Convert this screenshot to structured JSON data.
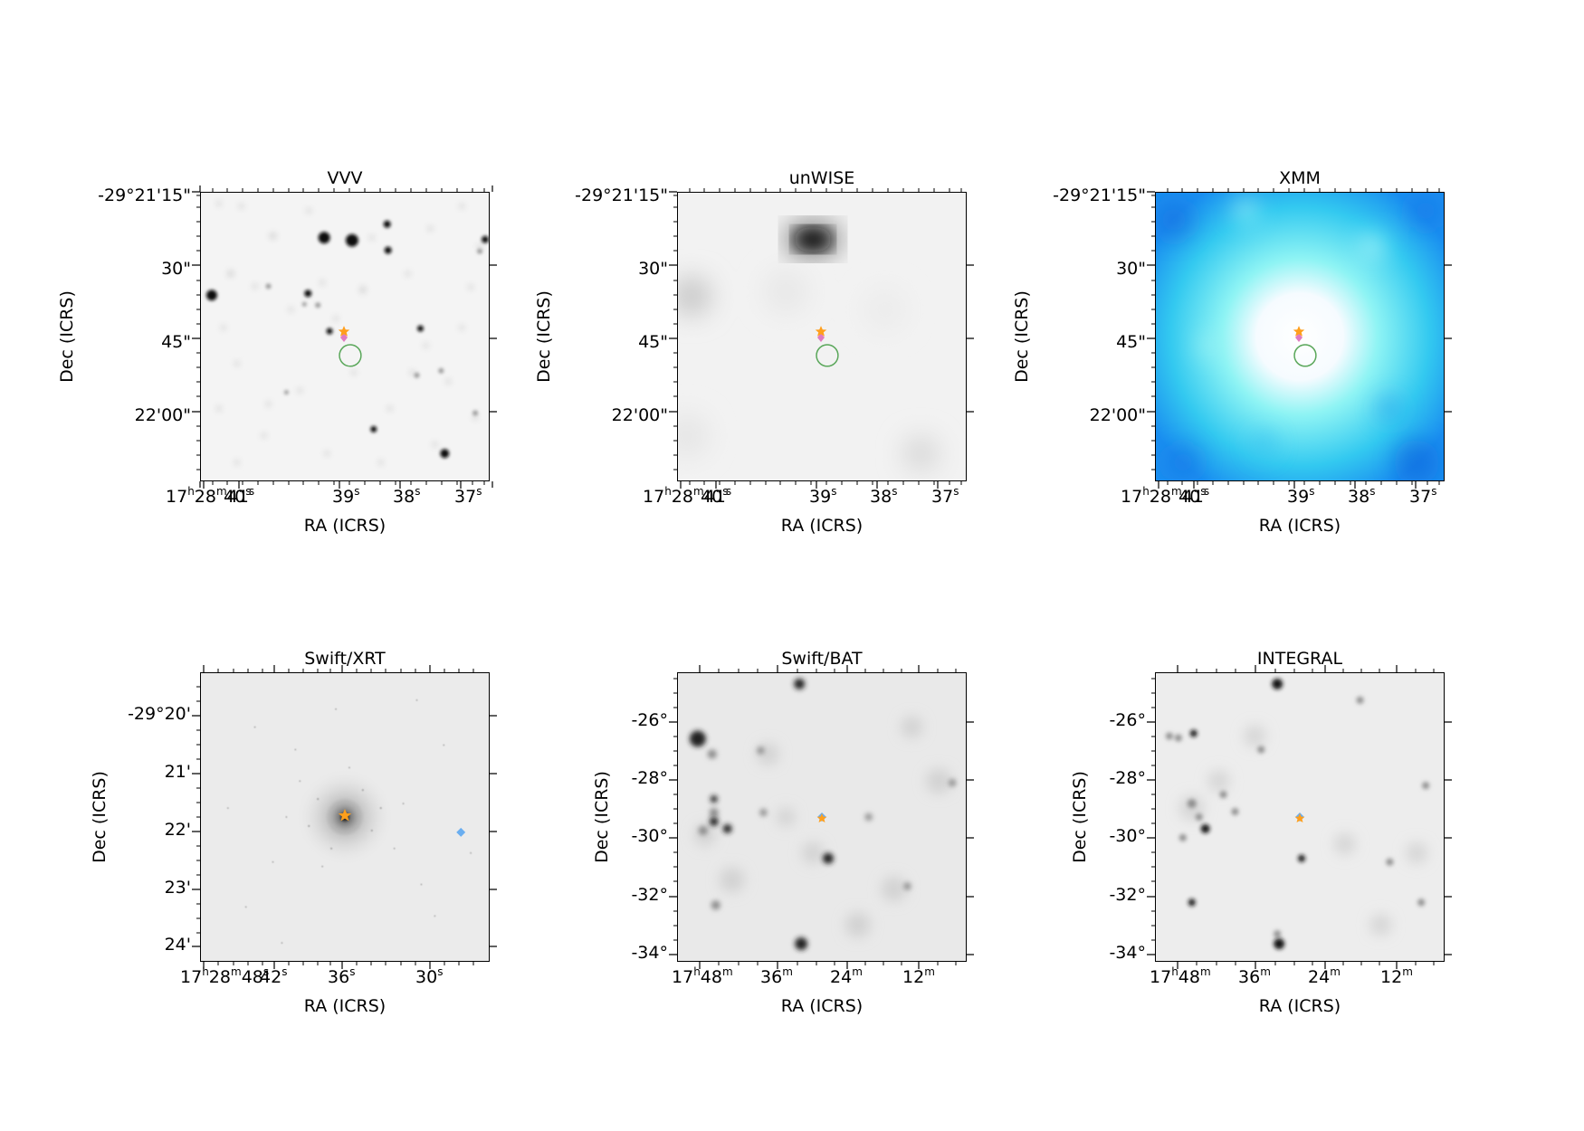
{
  "panels": [
    {
      "title": "VVV",
      "xlabel": "RA (ICRS)",
      "ylabel": "Dec (ICRS)",
      "yticks": [
        "-29°21'15\"",
        "30\"",
        "45\"",
        "22'00\""
      ],
      "xticks": [
        "17h28m41s",
        "40s",
        "39s",
        "38s",
        "37s"
      ]
    },
    {
      "title": "unWISE",
      "xlabel": "RA (ICRS)",
      "ylabel": "Dec (ICRS)",
      "yticks": [
        "-29°21'15\"",
        "30\"",
        "45\"",
        "22'00\""
      ],
      "xticks": [
        "17h28m41s",
        "40s",
        "39s",
        "38s",
        "37s"
      ]
    },
    {
      "title": "XMM",
      "xlabel": "RA (ICRS)",
      "ylabel": "Dec (ICRS)",
      "yticks": [
        "-29°21'15\"",
        "30\"",
        "45\"",
        "22'00\""
      ],
      "xticks": [
        "17h28m41s",
        "40s",
        "39s",
        "38s",
        "37s"
      ]
    },
    {
      "title": "Swift/XRT",
      "xlabel": "RA (ICRS)",
      "ylabel": "Dec (ICRS)",
      "yticks": [
        "-29°20'",
        "21'",
        "22'",
        "23'",
        "24'"
      ],
      "xticks": [
        "17h28m48s",
        "42s",
        "36s",
        "30s"
      ]
    },
    {
      "title": "Swift/BAT",
      "xlabel": "RA (ICRS)",
      "ylabel": "Dec (ICRS)",
      "yticks": [
        "-26°",
        "-28°",
        "-30°",
        "-32°",
        "-34°"
      ],
      "xticks": [
        "17h48m",
        "36m",
        "24m",
        "12m"
      ]
    },
    {
      "title": "INTEGRAL",
      "xlabel": "RA (ICRS)",
      "ylabel": "Dec (ICRS)",
      "yticks": [
        "-26°",
        "-28°",
        "-30°",
        "-32°",
        "-34°"
      ],
      "xticks": [
        "17h48m",
        "36m",
        "24m",
        "12m"
      ]
    }
  ],
  "colors": {
    "frame": "#000000",
    "source_star": "#ff9f1c",
    "source_plus": "#e07bc0",
    "circle": "#5aa75a",
    "diamond": "#6aaef0",
    "xmm_cyan": "#8ff4f4",
    "xmm_blue": "#1a8ef0",
    "grey_background": "#ebebeb"
  }
}
